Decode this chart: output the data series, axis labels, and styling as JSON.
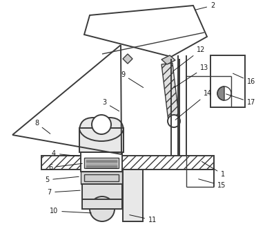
{
  "bg_color": "#ffffff",
  "line_color": "#3a3a3a",
  "label_color": "#1a1a1a",
  "fig_width": 3.84,
  "fig_height": 3.57
}
